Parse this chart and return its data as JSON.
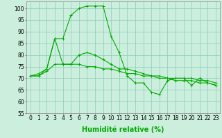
{
  "line1": {
    "x": [
      0,
      1,
      2,
      3,
      4,
      5,
      6,
      7,
      8,
      9,
      10,
      11,
      12,
      13,
      14,
      15,
      16,
      17,
      18,
      19,
      20,
      21,
      22,
      23
    ],
    "y": [
      71,
      71,
      74,
      87,
      87,
      97,
      100,
      101,
      101,
      101,
      88,
      81,
      71,
      68,
      68,
      64,
      63,
      69,
      70,
      70,
      67,
      70,
      68,
      67
    ]
  },
  "line2": {
    "x": [
      0,
      1,
      2,
      3,
      4,
      5,
      6,
      7,
      8,
      9,
      10,
      11,
      12,
      13,
      14,
      15,
      16,
      17,
      18,
      19,
      20,
      21,
      22,
      23
    ],
    "y": [
      71,
      72,
      74,
      87,
      76,
      76,
      80,
      81,
      80,
      78,
      76,
      74,
      74,
      73,
      72,
      71,
      71,
      70,
      70,
      70,
      70,
      69,
      69,
      68
    ]
  },
  "line3": {
    "x": [
      0,
      1,
      2,
      3,
      4,
      5,
      6,
      7,
      8,
      9,
      10,
      11,
      12,
      13,
      14,
      15,
      16,
      17,
      18,
      19,
      20,
      21,
      22,
      23
    ],
    "y": [
      71,
      71,
      73,
      76,
      76,
      76,
      76,
      75,
      75,
      74,
      74,
      73,
      72,
      72,
      71,
      71,
      70,
      70,
      69,
      69,
      69,
      68,
      68,
      67
    ]
  },
  "color": "#00aa00",
  "marker": "+",
  "background_color": "#cceedd",
  "grid_color": "#88ccbb",
  "xlabel": "Humidité relative (%)",
  "xlim": [
    -0.5,
    23.5
  ],
  "ylim": [
    55,
    103
  ],
  "yticks": [
    55,
    60,
    65,
    70,
    75,
    80,
    85,
    90,
    95,
    100
  ],
  "xticks": [
    0,
    1,
    2,
    3,
    4,
    5,
    6,
    7,
    8,
    9,
    10,
    11,
    12,
    13,
    14,
    15,
    16,
    17,
    18,
    19,
    20,
    21,
    22,
    23
  ],
  "xlabel_fontsize": 7,
  "tick_fontsize": 5.5
}
